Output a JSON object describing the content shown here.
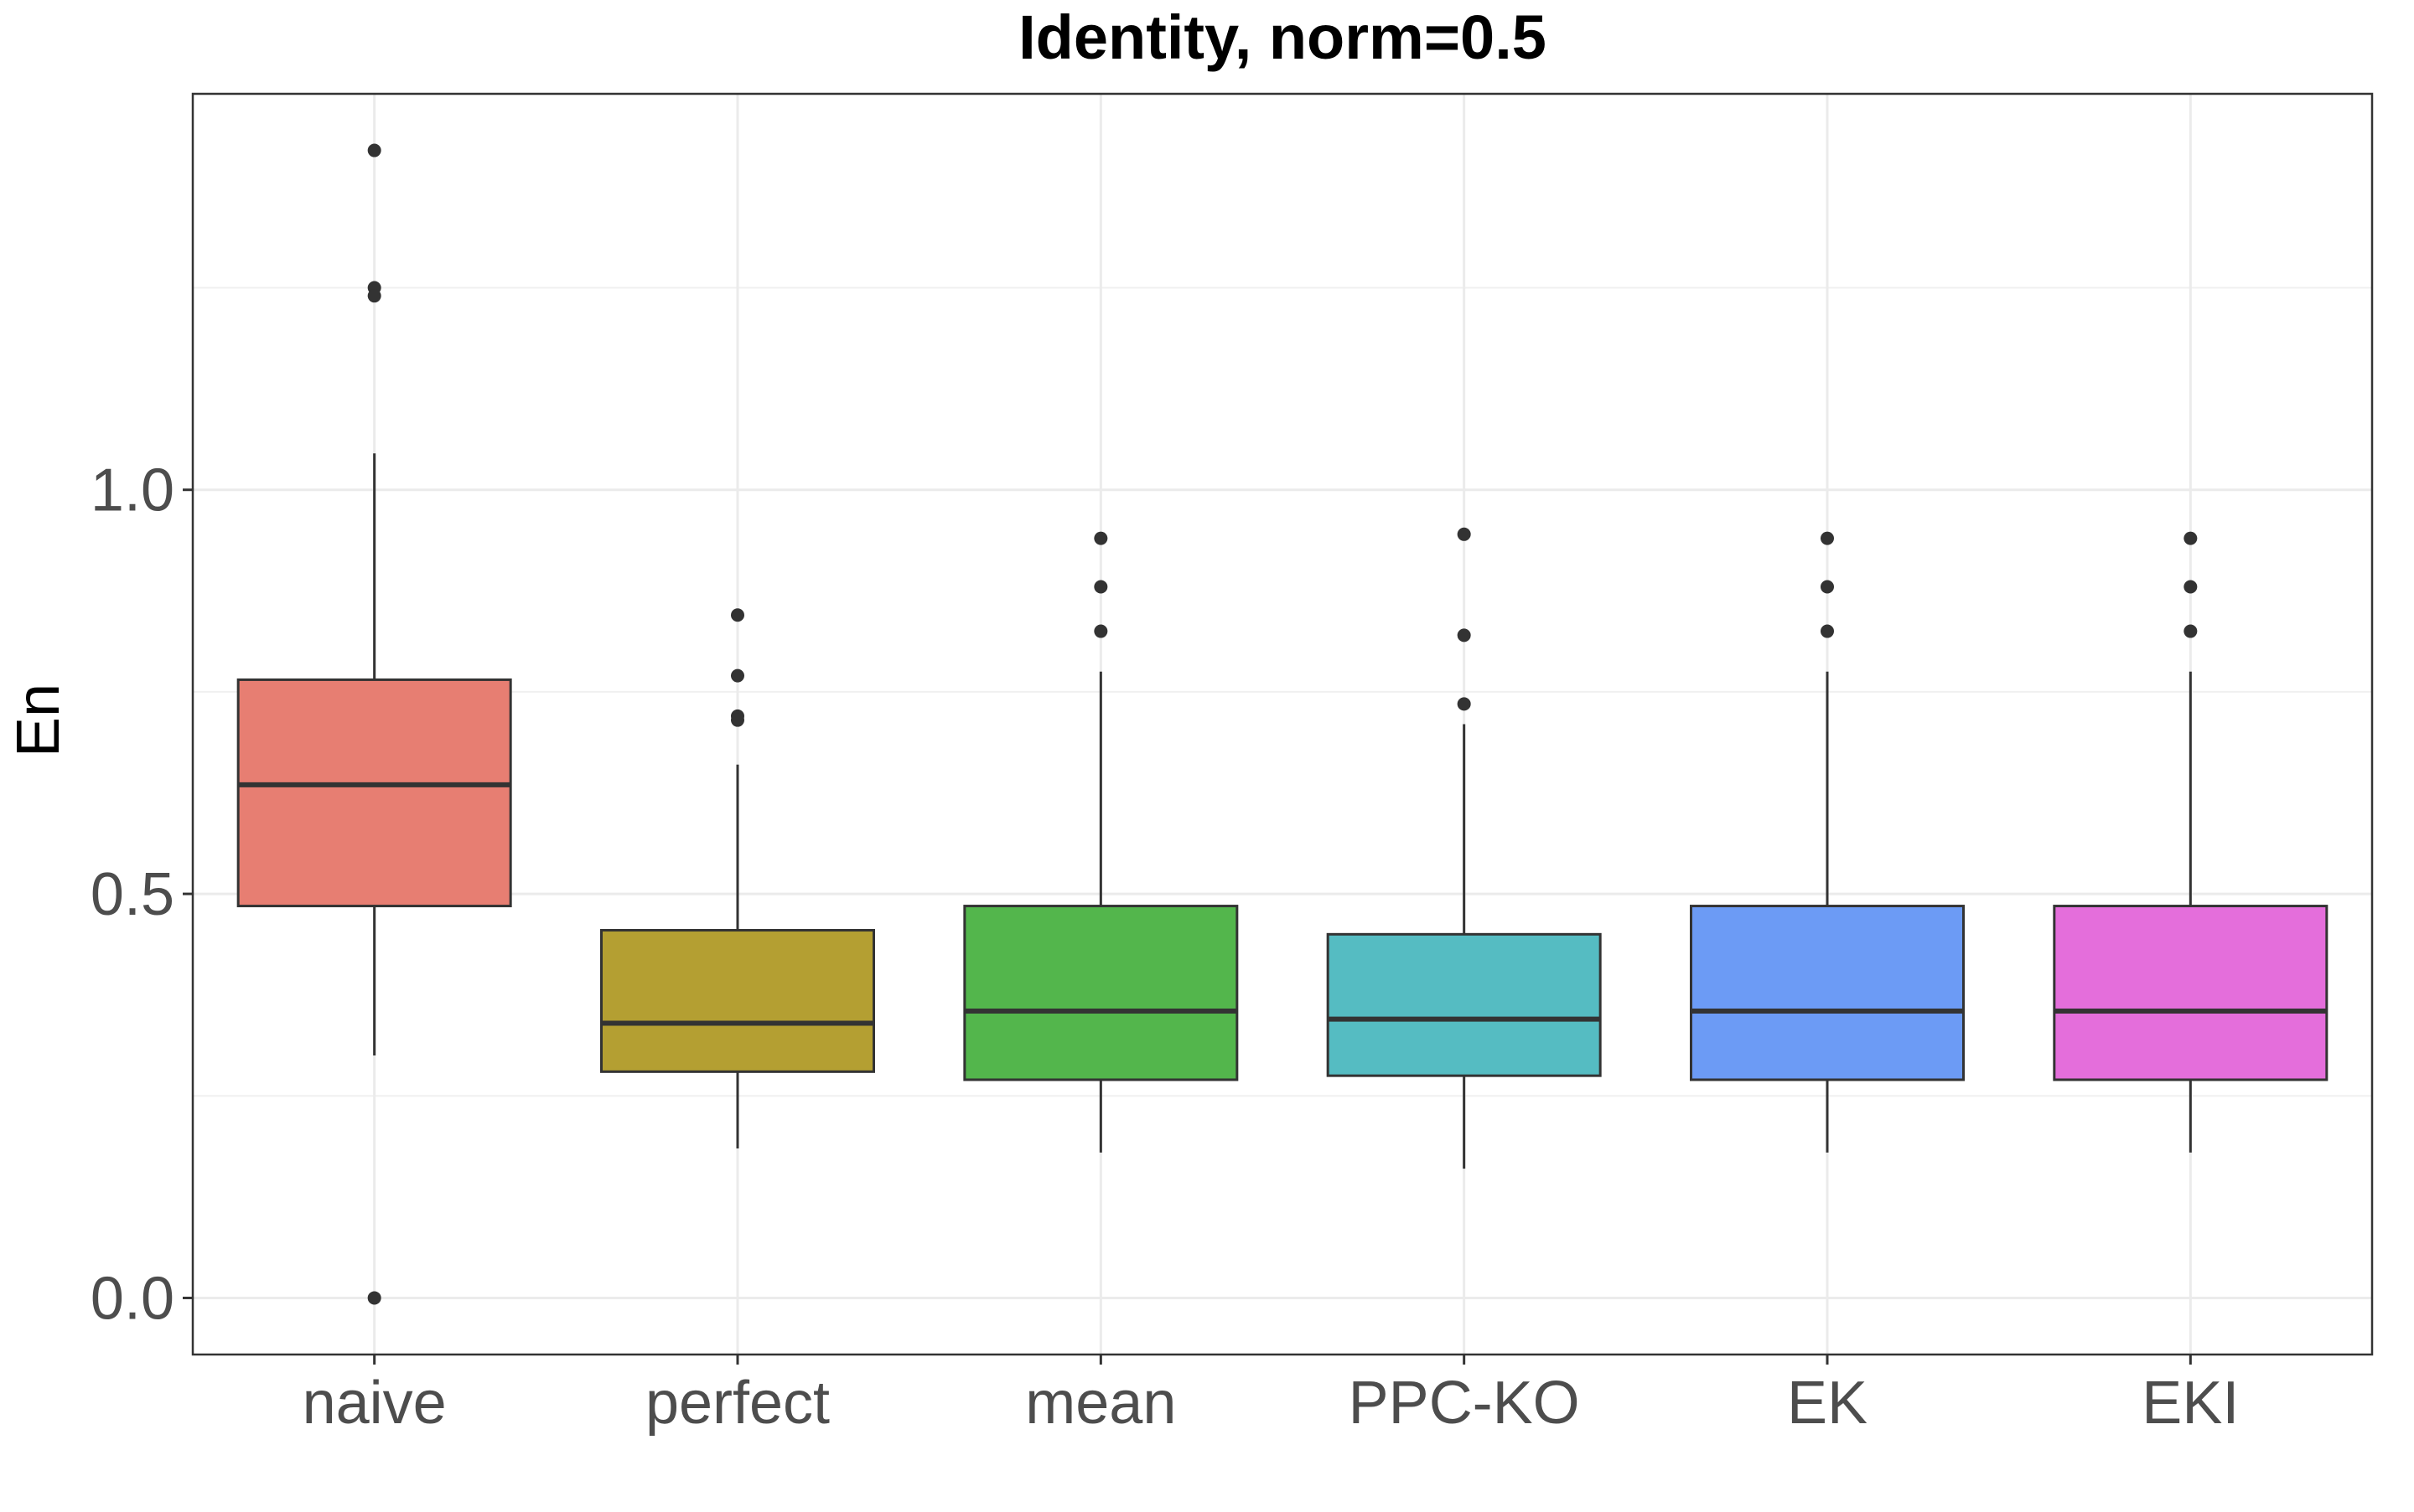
{
  "chart_data": {
    "type": "box",
    "title": "Identity, norm=0.5",
    "xlabel": "",
    "ylabel": "En",
    "ylim": [
      -0.07,
      1.49
    ],
    "yticks": [
      0.0,
      0.5,
      1.0
    ],
    "ytick_labels": [
      "0.0",
      "0.5",
      "1.0"
    ],
    "grid": true,
    "legend": "none",
    "categories": [
      "naive",
      "perfect",
      "mean",
      "PPC-KO",
      "EK",
      "EKI"
    ],
    "boxes": [
      {
        "name": "naive",
        "color": "#E77E72",
        "whisker_low": 0.3,
        "q1": 0.485,
        "median": 0.635,
        "q3": 0.765,
        "whisker_high": 1.045,
        "outliers": [
          1.42,
          1.25,
          1.24,
          0.0
        ]
      },
      {
        "name": "perfect",
        "color": "#B49F32",
        "whisker_low": 0.185,
        "q1": 0.28,
        "median": 0.34,
        "q3": 0.455,
        "whisker_high": 0.66,
        "outliers": [
          0.845,
          0.77,
          0.72,
          0.715
        ]
      },
      {
        "name": "mean",
        "color": "#53B64C",
        "whisker_low": 0.18,
        "q1": 0.27,
        "median": 0.355,
        "q3": 0.485,
        "whisker_high": 0.775,
        "outliers": [
          0.94,
          0.88,
          0.825
        ]
      },
      {
        "name": "PPC-KO",
        "color": "#55BCC2",
        "whisker_low": 0.16,
        "q1": 0.275,
        "median": 0.345,
        "q3": 0.45,
        "whisker_high": 0.71,
        "outliers": [
          0.945,
          0.82,
          0.735
        ]
      },
      {
        "name": "EK",
        "color": "#6C9BF5",
        "whisker_low": 0.18,
        "q1": 0.27,
        "median": 0.355,
        "q3": 0.485,
        "whisker_high": 0.775,
        "outliers": [
          0.94,
          0.88,
          0.825
        ]
      },
      {
        "name": "EKI",
        "color": "#E46EDB",
        "whisker_low": 0.18,
        "q1": 0.27,
        "median": 0.355,
        "q3": 0.485,
        "whisker_high": 0.775,
        "outliers": [
          0.94,
          0.88,
          0.825
        ]
      }
    ]
  }
}
